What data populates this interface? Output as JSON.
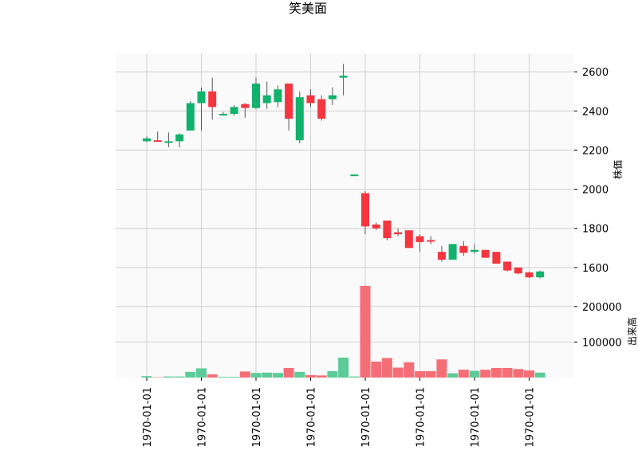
{
  "chart_data": {
    "type": "candlestick",
    "title": "笑美面",
    "price_axis_label": "株価",
    "volume_axis_label": "出来高",
    "price_ticks": [
      1600,
      1800,
      2000,
      2200,
      2400,
      2600
    ],
    "price_range": [
      1510,
      2690
    ],
    "volume_ticks": [
      100000,
      200000
    ],
    "volume_tick_labels": [
      "100000",
      "200000"
    ],
    "volume_range": [
      0,
      260000
    ],
    "x_tick_labels": [
      "1970-01-01",
      "1970-01-01",
      "1970-01-01",
      "1970-01-01",
      "1970-01-01",
      "1970-01-01",
      "1970-01-01",
      "1970-01-01"
    ],
    "x_tick_positions": [
      0,
      5,
      10,
      15,
      20,
      25,
      30,
      35
    ],
    "grid": true,
    "up_color": "#11b26b",
    "down_color": "#f6353f",
    "volume_up_color": "#5ccb98",
    "volume_down_color": "#f56e76",
    "candles": [
      {
        "open": 2245,
        "high": 2270,
        "low": 2240,
        "close": 2260
      },
      {
        "open": 2250,
        "high": 2295,
        "low": 2245,
        "close": 2248
      },
      {
        "open": 2245,
        "high": 2290,
        "low": 2215,
        "close": 2245
      },
      {
        "open": 2245,
        "high": 2285,
        "low": 2215,
        "close": 2280
      },
      {
        "open": 2300,
        "high": 2450,
        "low": 2300,
        "close": 2440
      },
      {
        "open": 2440,
        "high": 2520,
        "low": 2300,
        "close": 2500
      },
      {
        "open": 2500,
        "high": 2570,
        "low": 2355,
        "close": 2420
      },
      {
        "open": 2380,
        "high": 2395,
        "low": 2375,
        "close": 2385
      },
      {
        "open": 2385,
        "high": 2430,
        "low": 2375,
        "close": 2420
      },
      {
        "open": 2435,
        "high": 2440,
        "low": 2365,
        "close": 2415
      },
      {
        "open": 2415,
        "high": 2570,
        "low": 2410,
        "close": 2540
      },
      {
        "open": 2440,
        "high": 2550,
        "low": 2410,
        "close": 2480
      },
      {
        "open": 2445,
        "high": 2530,
        "low": 2420,
        "close": 2510
      },
      {
        "open": 2540,
        "high": 2540,
        "low": 2300,
        "close": 2360
      },
      {
        "open": 2250,
        "high": 2500,
        "low": 2235,
        "close": 2470
      },
      {
        "open": 2480,
        "high": 2510,
        "low": 2420,
        "close": 2440
      },
      {
        "open": 2460,
        "high": 2480,
        "low": 2350,
        "close": 2360
      },
      {
        "open": 2460,
        "high": 2520,
        "low": 2430,
        "close": 2480
      },
      {
        "open": 2570,
        "high": 2640,
        "low": 2480,
        "close": 2580
      },
      {
        "open": 2075,
        "high": 2075,
        "low": 2075,
        "close": 2075
      },
      {
        "open": 1980,
        "high": 1990,
        "low": 1770,
        "close": 1810
      },
      {
        "open": 1820,
        "high": 1830,
        "low": 1790,
        "close": 1800
      },
      {
        "open": 1840,
        "high": 1840,
        "low": 1740,
        "close": 1750
      },
      {
        "open": 1780,
        "high": 1800,
        "low": 1760,
        "close": 1770
      },
      {
        "open": 1790,
        "high": 1790,
        "low": 1700,
        "close": 1700
      },
      {
        "open": 1760,
        "high": 1770,
        "low": 1680,
        "close": 1730
      },
      {
        "open": 1740,
        "high": 1760,
        "low": 1720,
        "close": 1735
      },
      {
        "open": 1680,
        "high": 1710,
        "low": 1630,
        "close": 1640
      },
      {
        "open": 1640,
        "high": 1720,
        "low": 1640,
        "close": 1720
      },
      {
        "open": 1710,
        "high": 1735,
        "low": 1660,
        "close": 1675
      },
      {
        "open": 1680,
        "high": 1720,
        "low": 1670,
        "close": 1690
      },
      {
        "open": 1690,
        "high": 1690,
        "low": 1650,
        "close": 1650
      },
      {
        "open": 1680,
        "high": 1680,
        "low": 1620,
        "close": 1620
      },
      {
        "open": 1630,
        "high": 1630,
        "low": 1580,
        "close": 1585
      },
      {
        "open": 1600,
        "high": 1600,
        "low": 1565,
        "close": 1570
      },
      {
        "open": 1575,
        "high": 1580,
        "low": 1545,
        "close": 1550
      },
      {
        "open": 1550,
        "high": 1585,
        "low": 1545,
        "close": 1580
      }
    ],
    "volumes": [
      4000,
      1000,
      3000,
      3000,
      16000,
      26000,
      9000,
      2000,
      2000,
      17000,
      13000,
      14000,
      13000,
      27000,
      16000,
      7000,
      6000,
      18000,
      56000,
      3000,
      258000,
      45000,
      55000,
      28000,
      43000,
      18000,
      18000,
      51000,
      12000,
      22000,
      19000,
      22000,
      27000,
      27000,
      24000,
      20000,
      14000
    ]
  }
}
